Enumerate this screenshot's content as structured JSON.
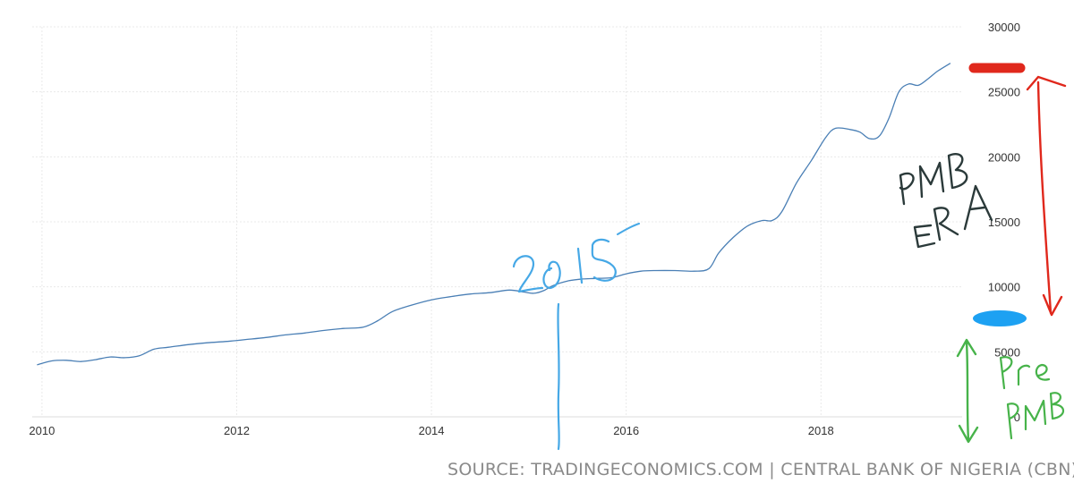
{
  "chart_data": {
    "type": "line",
    "title": "",
    "xlabel": "",
    "ylabel": "",
    "xlim": [
      2009.9,
      2019.45
    ],
    "ylim": [
      0,
      30000
    ],
    "y_ticks": [
      0,
      5000,
      10000,
      15000,
      20000,
      25000,
      30000
    ],
    "x_ticks": [
      2010,
      2012,
      2014,
      2016,
      2018
    ],
    "grid": true,
    "legend": "none",
    "line_color": "#4a7fb5",
    "series": [
      {
        "x": [
          2009.95,
          2010.1,
          2010.25,
          2010.4,
          2010.55,
          2010.7,
          2010.85,
          2011.0,
          2011.15,
          2011.3,
          2011.5,
          2011.7,
          2011.9,
          2012.1,
          2012.3,
          2012.5,
          2012.7,
          2012.9,
          2013.1,
          2013.3,
          2013.45,
          2013.6,
          2013.8,
          2014.0,
          2014.2,
          2014.4,
          2014.6,
          2014.8,
          2014.95,
          2015.05,
          2015.15,
          2015.25,
          2015.4,
          2015.55,
          2015.7,
          2015.85,
          2016.0,
          2016.15,
          2016.3,
          2016.5,
          2016.7,
          2016.85,
          2016.95,
          2017.1,
          2017.25,
          2017.4,
          2017.5,
          2017.6,
          2017.75,
          2017.9,
          2018.05,
          2018.15,
          2018.3,
          2018.4,
          2018.5,
          2018.6,
          2018.7,
          2018.8,
          2018.9,
          2019.0,
          2019.1,
          2019.2,
          2019.33
        ],
        "y": [
          4000,
          4300,
          4350,
          4250,
          4400,
          4600,
          4550,
          4700,
          5200,
          5350,
          5550,
          5700,
          5800,
          5950,
          6100,
          6300,
          6450,
          6650,
          6800,
          6900,
          7400,
          8100,
          8600,
          9000,
          9250,
          9450,
          9550,
          9750,
          9600,
          9500,
          9700,
          10100,
          10450,
          10600,
          10650,
          10700,
          11000,
          11200,
          11250,
          11250,
          11200,
          11400,
          12600,
          13800,
          14700,
          15100,
          15100,
          15800,
          18000,
          19700,
          21500,
          22200,
          22100,
          21900,
          21400,
          21600,
          23000,
          25000,
          25600,
          25500,
          26000,
          26600,
          27200
        ]
      }
    ]
  },
  "annotations": {
    "year_note": "2015",
    "era_line1": "PMB",
    "era_line2": "ERA",
    "pre_line1": "Pre",
    "pre_line2": "PMB"
  },
  "source_text": "SOURCE: TRADINGECONOMICS.COM | CENTRAL BANK OF NIGERIA (CBN)",
  "colors": {
    "red_marker": "#e0281c",
    "blue_marker": "#1da1f2",
    "green_arrow": "#47b34a",
    "dark_annotation": "#2b3a3a",
    "blue_annotation": "#46a8e6"
  }
}
